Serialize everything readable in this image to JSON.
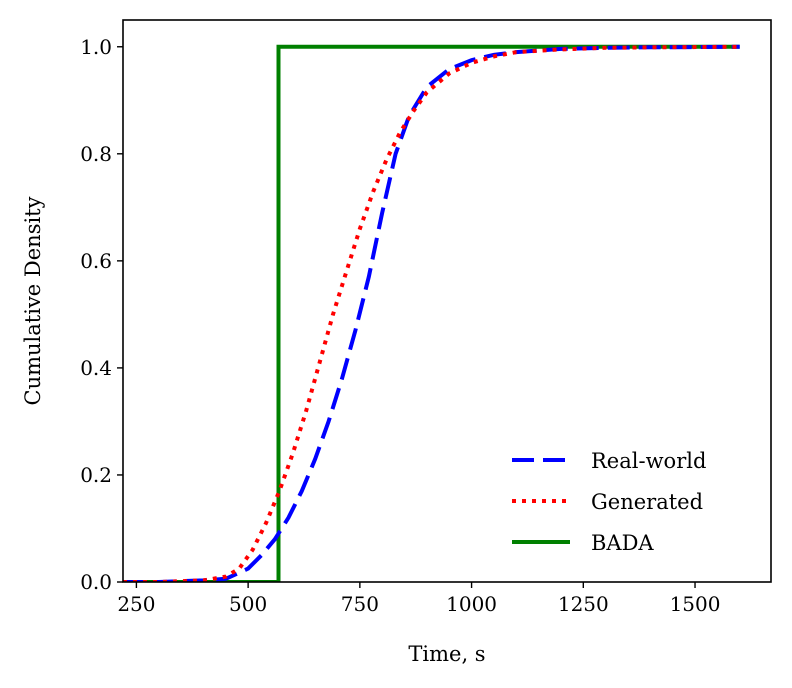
{
  "chart_data": {
    "type": "line",
    "xlabel": "Time, s",
    "ylabel": "Cumulative Density",
    "xlim": [
      220,
      1670
    ],
    "ylim": [
      0,
      1.05
    ],
    "xticks": [
      250,
      500,
      750,
      1000,
      1250,
      1500
    ],
    "yticks": [
      0.0,
      0.2,
      0.4,
      0.6,
      0.8,
      1.0
    ],
    "xtick_labels": [
      "250",
      "500",
      "750",
      "1000",
      "1250",
      "1500"
    ],
    "ytick_labels": [
      "0.0",
      "0.2",
      "0.4",
      "0.6",
      "0.8",
      "1.0"
    ],
    "grid": false,
    "legend_position": "bottom-right",
    "series": [
      {
        "name": "Real-world",
        "color": "#0000ff",
        "style": "dashed",
        "x": [
          220,
          300,
          400,
          450,
          500,
          530,
          560,
          590,
          620,
          650,
          680,
          710,
          740,
          770,
          800,
          830,
          860,
          900,
          950,
          1000,
          1050,
          1100,
          1200,
          1300,
          1400,
          1600
        ],
        "y": [
          0,
          0,
          0.003,
          0.006,
          0.025,
          0.05,
          0.08,
          0.12,
          0.17,
          0.23,
          0.3,
          0.38,
          0.47,
          0.57,
          0.69,
          0.8,
          0.87,
          0.925,
          0.958,
          0.975,
          0.985,
          0.99,
          0.996,
          0.998,
          0.999,
          1.0
        ]
      },
      {
        "name": "Generated",
        "color": "#ff0000",
        "style": "dotted",
        "x": [
          220,
          300,
          400,
          450,
          480,
          510,
          540,
          570,
          600,
          630,
          660,
          690,
          720,
          750,
          780,
          810,
          840,
          870,
          900,
          950,
          1000,
          1050,
          1100,
          1200,
          1300,
          1400,
          1600
        ],
        "y": [
          0,
          0,
          0.003,
          0.01,
          0.025,
          0.06,
          0.11,
          0.17,
          0.24,
          0.32,
          0.41,
          0.5,
          0.58,
          0.66,
          0.73,
          0.79,
          0.84,
          0.88,
          0.915,
          0.95,
          0.97,
          0.982,
          0.99,
          0.995,
          0.998,
          0.999,
          1.0
        ]
      },
      {
        "name": "BADA",
        "color": "#008000",
        "style": "solid",
        "x": [
          220,
          568,
          568,
          1600
        ],
        "y": [
          0,
          0,
          1.0,
          1.0
        ]
      }
    ]
  }
}
